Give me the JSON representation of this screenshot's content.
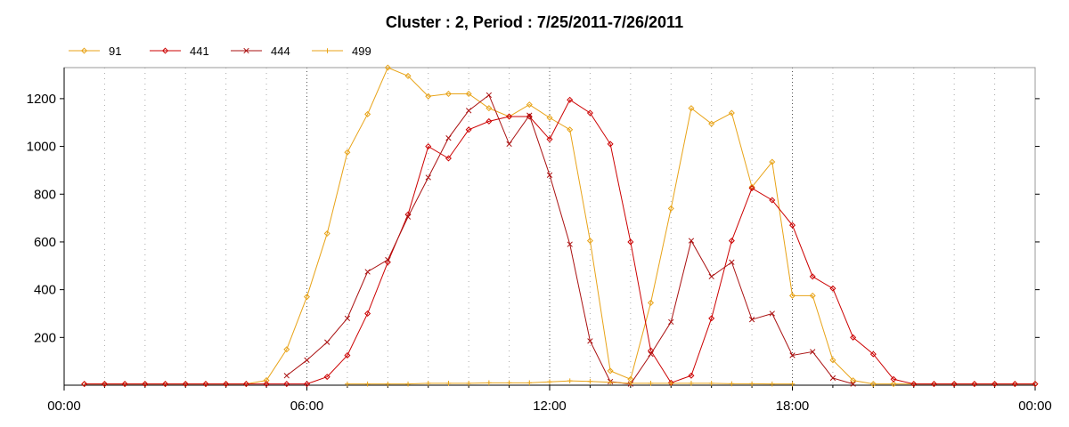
{
  "chart_data": {
    "type": "line",
    "title": "Cluster : 2, Period : 7/25/2011-7/26/2011",
    "xlabel": "",
    "ylabel": "",
    "x_unit": "hour",
    "xlim": [
      0,
      24
    ],
    "ylim": [
      0,
      1330
    ],
    "x_ticks": [
      {
        "value": 0,
        "label": "00:00"
      },
      {
        "value": 6,
        "label": "06:00"
      },
      {
        "value": 12,
        "label": "12:00"
      },
      {
        "value": 18,
        "label": "18:00"
      },
      {
        "value": 24,
        "label": "00:00"
      }
    ],
    "y_ticks": [
      200,
      400,
      600,
      800,
      1000,
      1200
    ],
    "grid": {
      "vertical_major": true,
      "vertical_minor": true,
      "horizontal": false
    },
    "legend_position": "top-left",
    "series": [
      {
        "name": "91",
        "color": "#e8a317",
        "marker": "diamond",
        "x": [
          0.5,
          1,
          1.5,
          2,
          2.5,
          3,
          3.5,
          4,
          4.5,
          5,
          5.5,
          6,
          6.5,
          7,
          7.5,
          8,
          8.5,
          9,
          9.5,
          10,
          10.5,
          11,
          11.5,
          12,
          12.5,
          13,
          13.5,
          14,
          14.5,
          15,
          15.5,
          16,
          16.5,
          17,
          17.5,
          18,
          18.5,
          19,
          19.5,
          20,
          20.5,
          21,
          21.5,
          22,
          22.5,
          23,
          23.5,
          24
        ],
        "values": [
          5,
          5,
          5,
          5,
          5,
          5,
          5,
          5,
          5,
          20,
          150,
          370,
          635,
          975,
          1135,
          1330,
          1295,
          1210,
          1220,
          1220,
          1160,
          1125,
          1175,
          1120,
          1070,
          605,
          60,
          25,
          345,
          740,
          1160,
          1095,
          1140,
          830,
          935,
          375,
          375,
          105,
          20,
          5,
          5,
          5,
          5,
          5,
          5,
          5,
          5,
          5
        ]
      },
      {
        "name": "441",
        "color": "#cc0000",
        "marker": "diamond",
        "x": [
          0.5,
          1,
          1.5,
          2,
          2.5,
          3,
          3.5,
          4,
          4.5,
          5,
          5.5,
          6,
          6.5,
          7,
          7.5,
          8,
          8.5,
          9,
          9.5,
          10,
          10.5,
          11,
          11.5,
          12,
          12.5,
          13,
          13.5,
          14,
          14.5,
          15,
          15.5,
          16,
          16.5,
          17,
          17.5,
          18,
          18.5,
          19,
          19.5,
          20,
          20.5,
          21,
          21.5,
          22,
          22.5,
          23,
          23.5,
          24
        ],
        "values": [
          5,
          5,
          5,
          5,
          5,
          5,
          5,
          5,
          5,
          5,
          5,
          5,
          35,
          125,
          300,
          515,
          715,
          1000,
          950,
          1070,
          1105,
          1125,
          1125,
          1030,
          1195,
          1140,
          1010,
          600,
          145,
          10,
          40,
          280,
          605,
          825,
          775,
          670,
          455,
          405,
          200,
          130,
          25,
          5,
          5,
          5,
          5,
          5,
          5,
          5
        ]
      },
      {
        "name": "444",
        "color": "#aa1111",
        "marker": "x",
        "x": [
          5.5,
          6,
          6.5,
          7,
          7.5,
          8,
          8.5,
          9,
          9.5,
          10,
          10.5,
          11,
          11.5,
          12,
          12.5,
          13,
          13.5,
          14,
          14.5,
          15,
          15.5,
          16,
          16.5,
          17,
          17.5,
          18,
          18.5,
          19,
          19.5
        ],
        "values": [
          40,
          105,
          180,
          280,
          475,
          525,
          705,
          870,
          1035,
          1150,
          1215,
          1010,
          1130,
          880,
          590,
          185,
          15,
          5,
          130,
          265,
          605,
          455,
          515,
          275,
          300,
          125,
          140,
          30,
          5
        ]
      },
      {
        "name": "499",
        "color": "#e8a317",
        "marker": "plus",
        "x": [
          7,
          7.5,
          8,
          8.5,
          9,
          9.5,
          10,
          10.5,
          11,
          11.5,
          12,
          12.5,
          13,
          13.5,
          14,
          14.5,
          15,
          15.5,
          16,
          16.5,
          17,
          17.5,
          18
        ],
        "values": [
          5,
          5,
          5,
          5,
          8,
          8,
          8,
          10,
          10,
          10,
          14,
          18,
          16,
          12,
          8,
          8,
          8,
          8,
          8,
          6,
          6,
          5,
          5
        ]
      }
    ]
  }
}
